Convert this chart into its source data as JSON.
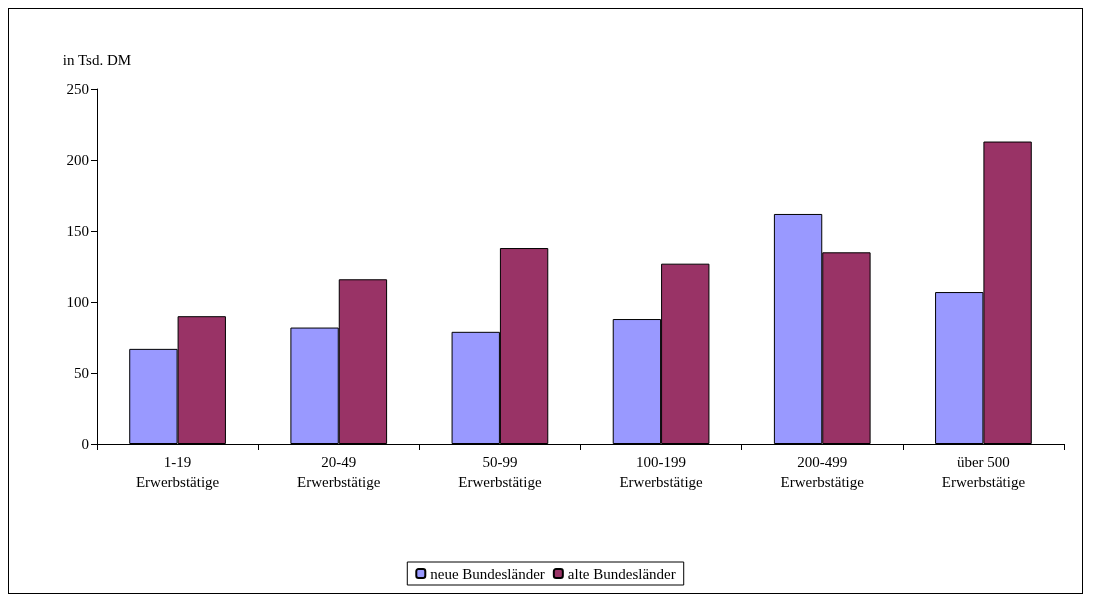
{
  "chart_data": {
    "type": "bar",
    "ylabel": "in Tsd. DM",
    "categories": [
      "1-19 Erwerbstätige",
      "20-49 Erwerbstätige",
      "50-99 Erwerbstätige",
      "100-199 Erwerbstätige",
      "200-499 Erwerbstätige",
      "über 500 Erwerbstätige"
    ],
    "series": [
      {
        "name": "neue Bundesländer",
        "color": "#9999ff",
        "values": [
          67,
          82,
          79,
          88,
          162,
          107
        ]
      },
      {
        "name": "alte Bundesländer",
        "color": "#993366",
        "values": [
          90,
          116,
          138,
          127,
          135,
          213
        ]
      }
    ],
    "ylim": [
      0,
      250
    ],
    "yticks": [
      0,
      50,
      100,
      150,
      200,
      250
    ],
    "grid": false,
    "legend": "bottom"
  }
}
